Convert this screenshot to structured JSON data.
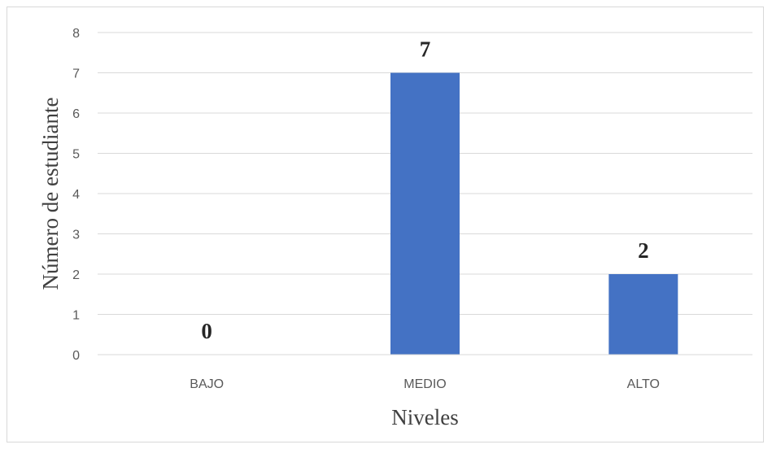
{
  "chart_data": {
    "type": "bar",
    "categories": [
      "BAJO",
      "MEDIO",
      "ALTO"
    ],
    "values": [
      0,
      7,
      2
    ],
    "data_labels": [
      "0",
      "7",
      "2"
    ],
    "title": "",
    "xlabel": "Niveles",
    "ylabel": "Número de estudiante",
    "ylim": [
      0,
      8
    ],
    "yticks": [
      0,
      1,
      2,
      3,
      4,
      5,
      6,
      7,
      8
    ],
    "grid": true,
    "legend": "none",
    "colors": {
      "bar": "#4472C4",
      "grid": "#d9d9d9",
      "tick_text": "#595959"
    }
  }
}
